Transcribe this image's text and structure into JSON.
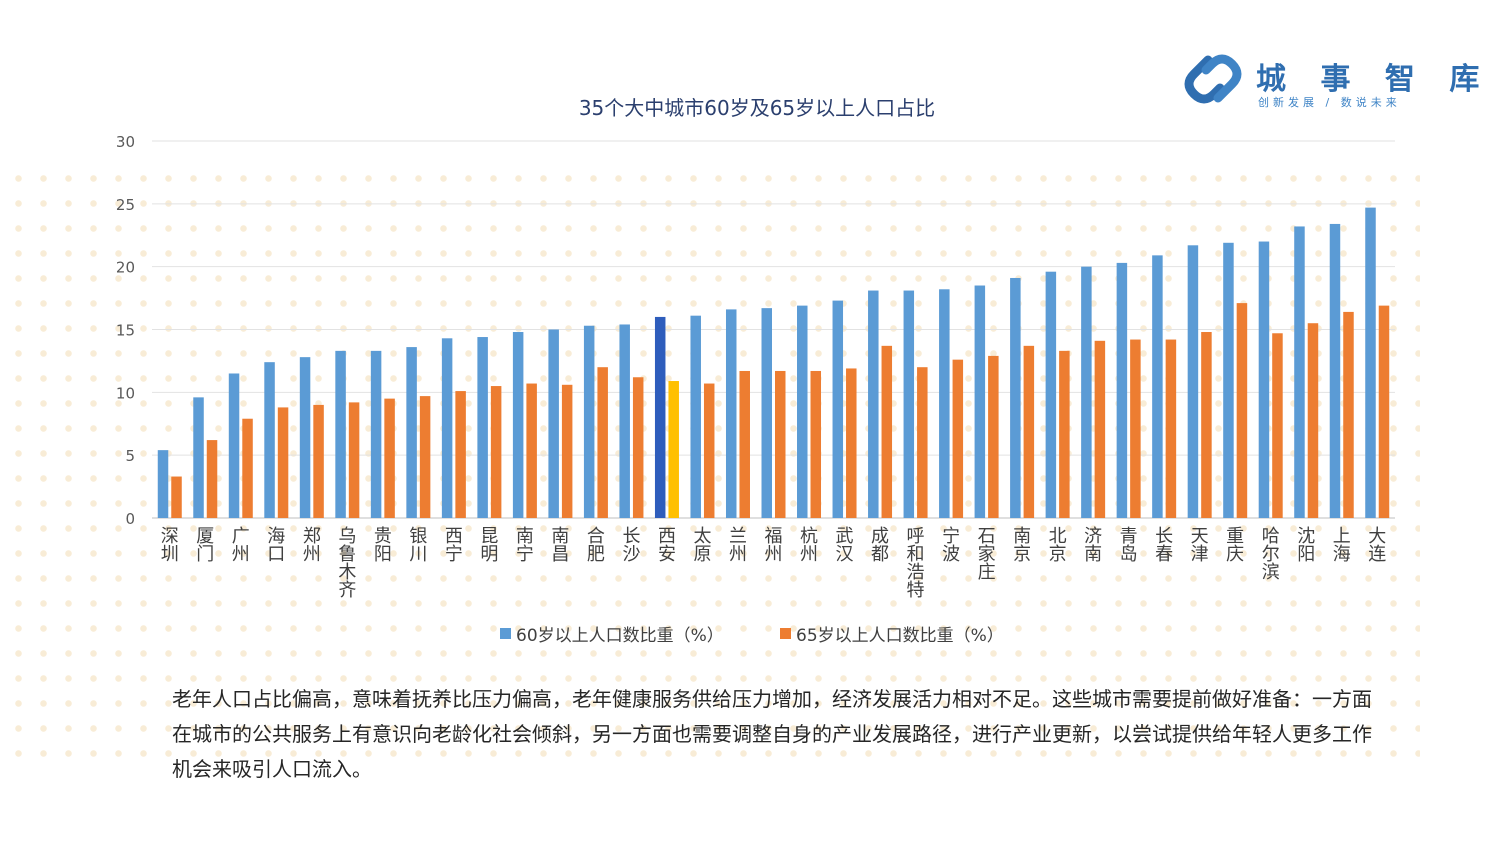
{
  "brand": {
    "name": "城 事 智 库",
    "tagline": "创新发展  /  数说未来",
    "colors": {
      "primary": "#2f6eb0",
      "light": "#3f84c6"
    }
  },
  "chart_data": {
    "type": "bar",
    "title": "35个大中城市60岁及65岁以上人口占比",
    "xlabel": "",
    "ylabel": "",
    "ylim": [
      0,
      30
    ],
    "yticks": [
      0,
      5,
      10,
      15,
      20,
      25,
      30
    ],
    "grid": true,
    "legend_position": "bottom",
    "categories": [
      "深圳",
      "厦门",
      "广州",
      "海口",
      "郑州",
      "乌鲁木齐",
      "贵阳",
      "银川",
      "西宁",
      "昆明",
      "南宁",
      "南昌",
      "合肥",
      "长沙",
      "西安",
      "太原",
      "兰州",
      "福州",
      "杭州",
      "武汉",
      "成都",
      "呼和浩特",
      "宁波",
      "石家庄",
      "南京",
      "北京",
      "济南",
      "青岛",
      "长春",
      "天津",
      "重庆",
      "哈尔滨",
      "沈阳",
      "上海",
      "大连"
    ],
    "series": [
      {
        "name": "60岁以上人口数比重（%）",
        "color": "#5b9bd5",
        "highlight_color": "#2e5dbc",
        "values": [
          5.4,
          9.6,
          11.5,
          12.4,
          12.8,
          13.3,
          13.3,
          13.6,
          14.3,
          14.4,
          14.8,
          15.0,
          15.3,
          15.4,
          16.0,
          16.1,
          16.6,
          16.7,
          16.9,
          17.3,
          18.1,
          18.1,
          18.2,
          18.5,
          19.1,
          19.6,
          20.0,
          20.3,
          20.9,
          21.7,
          21.9,
          22.0,
          23.2,
          23.4,
          24.7
        ]
      },
      {
        "name": "65岁以上人口数比重（%）",
        "color": "#ed7d31",
        "highlight_color": "#ffc000",
        "values": [
          3.3,
          6.2,
          7.9,
          8.8,
          9.0,
          9.2,
          9.5,
          9.7,
          10.1,
          10.5,
          10.7,
          10.6,
          12.0,
          11.2,
          10.9,
          10.7,
          11.7,
          11.7,
          11.7,
          11.9,
          13.7,
          12.0,
          12.6,
          12.9,
          13.7,
          13.3,
          14.1,
          14.2,
          14.2,
          14.8,
          17.1,
          14.7,
          15.5,
          16.4,
          16.9
        ]
      }
    ],
    "highlight_category": "西安"
  },
  "caption": "老年人口占比偏高，意味着抚养比压力偏高，老年健康服务供给压力增加，经济发展活力相对不足。这些城市需要提前做好准备：一方面在城市的公共服务上有意识向老龄化社会倾斜，另一方面也需要调整自身的产业发展路径，进行产业更新，以尝试提供给年轻人更多工作机会来吸引人口流入。"
}
